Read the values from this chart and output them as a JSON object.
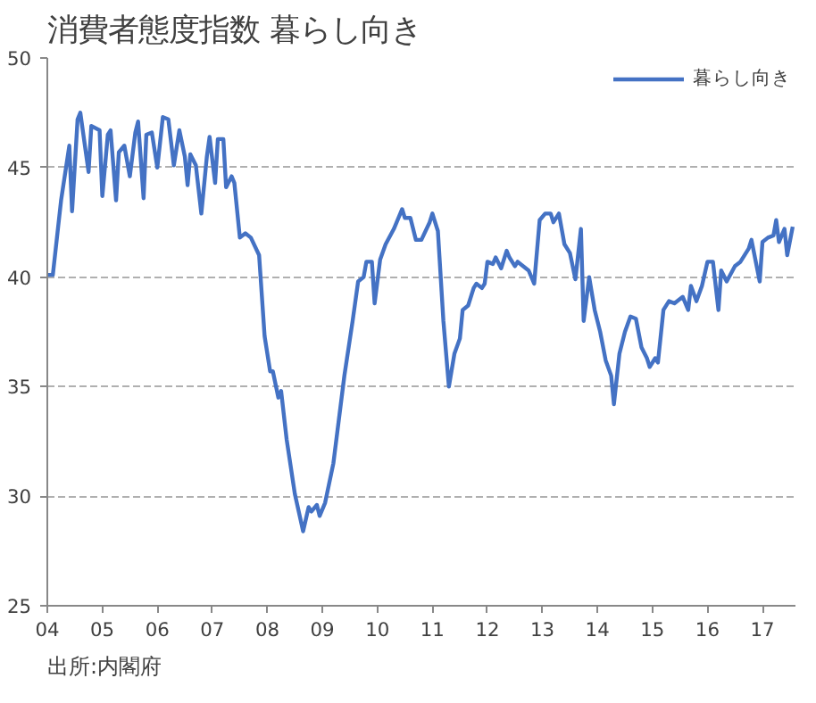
{
  "chart_data": {
    "type": "line",
    "title": "消費者態度指数  暮らし向き",
    "annotations": [
      "出所:内閣府"
    ],
    "series": [
      {
        "name": "暮らし向き",
        "color": "#4472c4",
        "x": [
          2004.0,
          2004.1,
          2004.25,
          2004.4,
          2004.45,
          2004.55,
          2004.6,
          2004.75,
          2004.8,
          2004.95,
          2005.0,
          2005.1,
          2005.15,
          2005.25,
          2005.3,
          2005.4,
          2005.5,
          2005.6,
          2005.65,
          2005.75,
          2005.8,
          2005.9,
          2006.0,
          2006.1,
          2006.2,
          2006.3,
          2006.4,
          2006.5,
          2006.55,
          2006.6,
          2006.7,
          2006.8,
          2006.9,
          2006.95,
          2007.05,
          2007.1,
          2007.2,
          2007.25,
          2007.35,
          2007.4,
          2007.5,
          2007.6,
          2007.7,
          2007.85,
          2007.95,
          2008.05,
          2008.1,
          2008.2,
          2008.25,
          2008.35,
          2008.5,
          2008.65,
          2008.75,
          2008.8,
          2008.9,
          2008.95,
          2009.05,
          2009.2,
          2009.4,
          2009.55,
          2009.65,
          2009.75,
          2009.8,
          2009.9,
          2009.95,
          2010.05,
          2010.15,
          2010.3,
          2010.45,
          2010.5,
          2010.6,
          2010.7,
          2010.8,
          2010.95,
          2011.0,
          2011.1,
          2011.2,
          2011.3,
          2011.4,
          2011.5,
          2011.55,
          2011.65,
          2011.75,
          2011.8,
          2011.9,
          2011.95,
          2012.0,
          2012.1,
          2012.15,
          2012.25,
          2012.35,
          2012.4,
          2012.5,
          2012.55,
          2012.75,
          2012.85,
          2012.95,
          2013.05,
          2013.15,
          2013.2,
          2013.3,
          2013.4,
          2013.5,
          2013.6,
          2013.7,
          2013.75,
          2013.85,
          2013.95,
          2014.05,
          2014.15,
          2014.25,
          2014.3,
          2014.4,
          2014.5,
          2014.6,
          2014.7,
          2014.8,
          2014.9,
          2014.95,
          2015.05,
          2015.1,
          2015.2,
          2015.3,
          2015.4,
          2015.55,
          2015.65,
          2015.7,
          2015.8,
          2015.9,
          2016.0,
          2016.1,
          2016.2,
          2016.25,
          2016.35,
          2016.5,
          2016.6,
          2016.75,
          2016.8,
          2016.95,
          2017.0,
          2017.1,
          2017.2,
          2017.25,
          2017.3,
          2017.4,
          2017.45,
          2017.55
        ],
        "values": [
          40.1,
          40.1,
          43.5,
          46.0,
          43.0,
          47.2,
          47.5,
          44.8,
          46.9,
          46.7,
          43.7,
          46.5,
          46.7,
          43.5,
          45.7,
          46.0,
          44.6,
          46.6,
          47.1,
          43.6,
          46.5,
          46.6,
          45.0,
          47.3,
          47.2,
          45.1,
          46.7,
          45.5,
          44.2,
          45.6,
          45.1,
          42.9,
          45.5,
          46.4,
          44.3,
          46.3,
          46.3,
          44.1,
          44.6,
          44.3,
          41.8,
          42.0,
          41.8,
          41.0,
          37.3,
          35.7,
          35.7,
          34.5,
          34.8,
          32.6,
          30.1,
          28.4,
          29.5,
          29.3,
          29.6,
          29.1,
          29.7,
          31.5,
          35.5,
          38.0,
          39.8,
          40.0,
          40.7,
          40.7,
          38.8,
          40.8,
          41.5,
          42.2,
          43.1,
          42.7,
          42.7,
          41.7,
          41.7,
          42.5,
          42.9,
          42.1,
          38.0,
          35.0,
          36.5,
          37.2,
          38.5,
          38.7,
          39.5,
          39.7,
          39.5,
          39.7,
          40.7,
          40.6,
          40.9,
          40.4,
          41.2,
          40.9,
          40.5,
          40.7,
          40.3,
          39.7,
          42.6,
          42.9,
          42.9,
          42.5,
          42.9,
          41.5,
          41.1,
          39.9,
          42.2,
          38.0,
          40.0,
          38.5,
          37.5,
          36.2,
          35.5,
          34.2,
          36.5,
          37.5,
          38.2,
          38.1,
          36.8,
          36.3,
          35.9,
          36.3,
          36.1,
          38.5,
          38.9,
          38.8,
          39.1,
          38.5,
          39.6,
          38.9,
          39.6,
          40.7,
          40.7,
          38.5,
          40.3,
          39.8,
          40.5,
          40.7,
          41.3,
          41.7,
          39.8,
          41.6,
          41.8,
          41.9,
          42.6,
          41.6,
          42.2,
          41.0,
          42.3
        ]
      }
    ],
    "xlim": [
      2004,
      2017.6
    ],
    "xticks": [
      {
        "value": 2004,
        "label": "04"
      },
      {
        "value": 2005,
        "label": "05"
      },
      {
        "value": 2006,
        "label": "06"
      },
      {
        "value": 2007,
        "label": "07"
      },
      {
        "value": 2008,
        "label": "08"
      },
      {
        "value": 2009,
        "label": "09"
      },
      {
        "value": 2010,
        "label": "10"
      },
      {
        "value": 2011,
        "label": "11"
      },
      {
        "value": 2012,
        "label": "12"
      },
      {
        "value": 2013,
        "label": "13"
      },
      {
        "value": 2014,
        "label": "14"
      },
      {
        "value": 2015,
        "label": "15"
      },
      {
        "value": 2016,
        "label": "16"
      },
      {
        "value": 2017,
        "label": "17"
      }
    ],
    "ylim": [
      25,
      50
    ],
    "yticks": [
      25,
      30,
      35,
      40,
      45,
      50
    ],
    "grid": "y",
    "legend": "top right",
    "line_style": "solid"
  }
}
